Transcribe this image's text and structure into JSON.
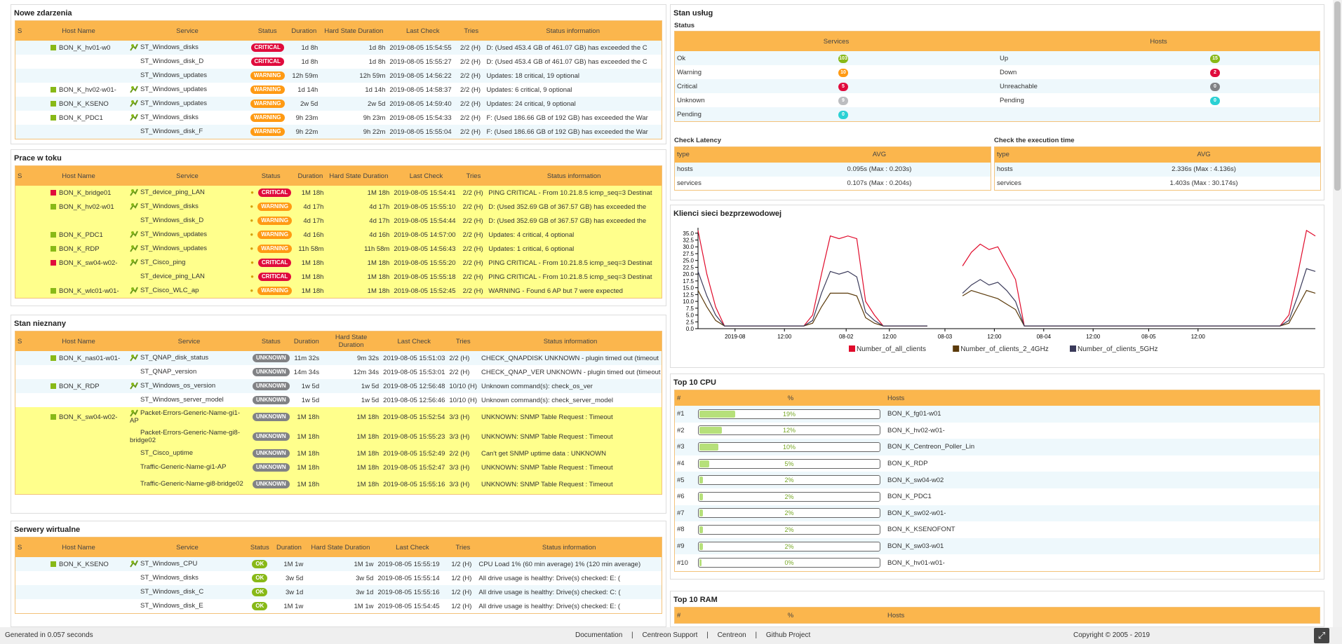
{
  "nowe": {
    "title": "Nowe zdarzenia",
    "headers": [
      "S",
      "Host Name",
      "Service",
      "Status",
      "Duration",
      "Hard State Duration",
      "Last Check",
      "Tries",
      "Status information"
    ],
    "rows": [
      {
        "host": "BON_K_hv01-w0",
        "service": "ST_Windows_disks",
        "status": "CRITICAL",
        "dur": "1d 8h",
        "hard": "1d 8h",
        "last": "2019-08-05 15:54:55",
        "tries": "2/2 (H)",
        "info": "D: (Used 453.4 GB of 461.07 GB) has exceeded the C"
      },
      {
        "host": "",
        "service": "ST_Windows_disk_D",
        "status": "CRITICAL",
        "dur": "1d 8h",
        "hard": "1d 8h",
        "last": "2019-08-05 15:55:27",
        "tries": "2/2 (H)",
        "info": "D: (Used 453.4 GB of 461.07 GB) has exceeded the C"
      },
      {
        "host": "",
        "service": "ST_Windows_updates",
        "status": "WARNING",
        "dur": "12h 59m",
        "hard": "12h 59m",
        "last": "2019-08-05 14:56:22",
        "tries": "2/2 (H)",
        "info": "Updates: 18 critical, 19 optional"
      },
      {
        "host": "BON_K_hv02-w01-",
        "service": "ST_Windows_updates",
        "status": "WARNING",
        "dur": "1d 14h",
        "hard": "1d 14h",
        "last": "2019-08-05 14:58:37",
        "tries": "2/2 (H)",
        "info": "Updates: 6 critical, 9 optional"
      },
      {
        "host": "BON_K_KSENO",
        "service": "ST_Windows_updates",
        "status": "WARNING",
        "dur": "2w 5d",
        "hard": "2w 5d",
        "last": "2019-08-05 14:59:40",
        "tries": "2/2 (H)",
        "info": "Updates: 24 critical, 9 optional"
      },
      {
        "host": "BON_K_PDC1",
        "service": "ST_Windows_disks",
        "status": "WARNING",
        "dur": "9h 23m",
        "hard": "9h 23m",
        "last": "2019-08-05 15:54:33",
        "tries": "2/2 (H)",
        "info": "F: (Used 186.66 GB of 192 GB) has exceeded the War"
      },
      {
        "host": "",
        "service": "ST_Windows_disk_F",
        "status": "WARNING",
        "dur": "9h 22m",
        "hard": "9h 22m",
        "last": "2019-08-05 15:55:04",
        "tries": "2/2 (H)",
        "info": "F: (Used 186.66 GB of 192 GB) has exceeded the War"
      }
    ]
  },
  "prace": {
    "title": "Prace w toku",
    "headers": [
      "S",
      "Host Name",
      "Service",
      "Status",
      "Duration",
      "Hard State Duration",
      "Last Check",
      "Tries",
      "Status information"
    ],
    "rows": [
      {
        "host": "BON_K_bridge01",
        "sq": "r",
        "service": "ST_device_ping_LAN",
        "status": "CRITICAL",
        "dur": "1M 18h",
        "hard": "1M 18h",
        "last": "2019-08-05 15:54:41",
        "tries": "2/2 (H)",
        "info": "PING CRITICAL - From 10.21.8.5 icmp_seq=3 Destinat"
      },
      {
        "host": "BON_K_hv02-w01",
        "sq": "g",
        "service": "ST_Windows_disks",
        "status": "WARNING",
        "dur": "4d 17h",
        "hard": "4d 17h",
        "last": "2019-08-05 15:55:10",
        "tries": "2/2 (H)",
        "info": "D: (Used 352.69 GB of 367.57 GB) has exceeded the"
      },
      {
        "host": "",
        "sq": "",
        "service": "ST_Windows_disk_D",
        "status": "WARNING",
        "dur": "4d 17h",
        "hard": "4d 17h",
        "last": "2019-08-05 15:54:44",
        "tries": "2/2 (H)",
        "info": "D: (Used 352.69 GB of 367.57 GB) has exceeded the"
      },
      {
        "host": "BON_K_PDC1",
        "sq": "g",
        "service": "ST_Windows_updates",
        "status": "WARNING",
        "dur": "4d 16h",
        "hard": "4d 16h",
        "last": "2019-08-05 14:57:00",
        "tries": "2/2 (H)",
        "info": "Updates: 4 critical, 4 optional"
      },
      {
        "host": "BON_K_RDP",
        "sq": "g",
        "service": "ST_Windows_updates",
        "status": "WARNING",
        "dur": "11h 58m",
        "hard": "11h 58m",
        "last": "2019-08-05 14:56:43",
        "tries": "2/2 (H)",
        "info": "Updates: 1 critical, 6 optional"
      },
      {
        "host": "BON_K_sw04-w02-",
        "sq": "r",
        "service": "ST_Cisco_ping",
        "status": "CRITICAL",
        "dur": "1M 18h",
        "hard": "1M 18h",
        "last": "2019-08-05 15:55:20",
        "tries": "2/2 (H)",
        "info": "PING CRITICAL - From 10.21.8.5 icmp_seq=3 Destinat"
      },
      {
        "host": "",
        "sq": "",
        "service": "ST_device_ping_LAN",
        "status": "CRITICAL",
        "dur": "1M 18h",
        "hard": "1M 18h",
        "last": "2019-08-05 15:55:18",
        "tries": "2/2 (H)",
        "info": "PING CRITICAL - From 10.21.8.5 icmp_seq=3 Destinat"
      },
      {
        "host": "BON_K_wlc01-w01-",
        "sq": "g",
        "service": "ST_Cisco_WLC_ap",
        "status": "WARNING",
        "dur": "1M 18h",
        "hard": "1M 18h",
        "last": "2019-08-05 15:52:45",
        "tries": "2/2 (H)",
        "info": "WARNING - Found 6 AP but 7 were expected"
      }
    ]
  },
  "nieznany": {
    "title": "Stan nieznany",
    "headers": [
      "S",
      "Host Name",
      "Service",
      "Status",
      "Duration",
      "Hard State Duration",
      "Last Check",
      "Tries",
      "Status information"
    ],
    "rows": [
      {
        "host": "BON_K_nas01-w01-",
        "service": "ST_QNAP_disk_status",
        "status": "UNKNOWN",
        "dur": "11m 32s",
        "hard": "9m 32s",
        "last": "2019-08-05 15:51:03",
        "tries": "2/2 (H)",
        "info": "CHECK_QNAPDISK UNKNOWN - plugin timed out (timeout"
      },
      {
        "host": "",
        "service": "ST_QNAP_version",
        "status": "UNKNOWN",
        "dur": "14m 34s",
        "hard": "12m 34s",
        "last": "2019-08-05 15:53:01",
        "tries": "2/2 (H)",
        "info": "CHECK_QNAP_VER UNKNOWN - plugin timed out (timeout"
      },
      {
        "host": "BON_K_RDP",
        "service": "ST_Windows_os_version",
        "status": "UNKNOWN",
        "dur": "1w 5d",
        "hard": "1w 5d",
        "last": "2019-08-05 12:56:48",
        "tries": "10/10 (H)",
        "info": "Unknown command(s): check_os_ver"
      },
      {
        "host": "",
        "service": "ST_Windows_server_model",
        "status": "UNKNOWN",
        "dur": "1w 5d",
        "hard": "1w 5d",
        "last": "2019-08-05 12:56:46",
        "tries": "10/10 (H)",
        "info": "Unknown command(s): check_server_model"
      },
      {
        "host": "BON_K_sw04-w02-",
        "service": "Packet-Errors-Generic-Name-gi1-AP",
        "status": "UNKNOWN",
        "dur": "1M 18h",
        "hard": "1M 18h",
        "last": "2019-08-05 15:52:54",
        "tries": "3/3 (H)",
        "info": "UNKNOWN: SNMP Table Request : Timeout"
      },
      {
        "host": "",
        "service": "Packet-Errors-Generic-Name-gi8-bridge02",
        "status": "UNKNOWN",
        "dur": "1M 18h",
        "hard": "1M 18h",
        "last": "2019-08-05 15:55:23",
        "tries": "3/3 (H)",
        "info": "UNKNOWN: SNMP Table Request : Timeout"
      },
      {
        "host": "",
        "service": "ST_Cisco_uptime",
        "status": "UNKNOWN",
        "dur": "1M 18h",
        "hard": "1M 18h",
        "last": "2019-08-05 15:52:49",
        "tries": "2/2 (H)",
        "info": "Can't get SNMP uptime data : UNKNOWN"
      },
      {
        "host": "",
        "service": "Traffic-Generic-Name-gi1-AP",
        "status": "UNKNOWN",
        "dur": "1M 18h",
        "hard": "1M 18h",
        "last": "2019-08-05 15:52:47",
        "tries": "3/3 (H)",
        "info": "UNKNOWN: SNMP Table Request : Timeout"
      },
      {
        "host": "",
        "service": "Traffic-Generic-Name-gi8-bridge02",
        "status": "UNKNOWN",
        "dur": "1M 18h",
        "hard": "1M 18h",
        "last": "2019-08-05 15:55:16",
        "tries": "3/3 (H)",
        "info": "UNKNOWN: SNMP Table Request : Timeout"
      }
    ]
  },
  "serwery": {
    "title": "Serwery wirtualne",
    "headers": [
      "S",
      "Host Name",
      "Service",
      "Status",
      "Duration",
      "Hard State Duration",
      "Last Check",
      "Tries",
      "Status information"
    ],
    "rows": [
      {
        "host": "BON_K_KSENO",
        "service": "ST_Windows_CPU",
        "status": "OK",
        "dur": "1M 1w",
        "hard": "1M 1w",
        "last": "2019-08-05 15:55:19",
        "tries": "1/2 (H)",
        "info": "CPU Load 1% (60 min average) 1% (120 min average)"
      },
      {
        "host": "",
        "service": "ST_Windows_disks",
        "status": "OK",
        "dur": "3w 5d",
        "hard": "3w 5d",
        "last": "2019-08-05 15:55:14",
        "tries": "1/2 (H)",
        "info": "All drive usage is healthy: Drive(s) checked: E: ("
      },
      {
        "host": "",
        "service": "ST_Windows_disk_C",
        "status": "OK",
        "dur": "3w 1d",
        "hard": "3w 1d",
        "last": "2019-08-05 15:55:16",
        "tries": "1/2 (H)",
        "info": "All drive usage is healthy: Drive(s) checked: C: ("
      },
      {
        "host": "",
        "service": "ST_Windows_disk_E",
        "status": "OK",
        "dur": "1M 1w",
        "hard": "1M 1w",
        "last": "2019-08-05 15:54:45",
        "tries": "1/2 (H)",
        "info": "All drive usage is healthy: Drive(s) checked: E: ("
      }
    ]
  },
  "stan": {
    "title": "Stan usług",
    "subtitle": "Status",
    "services_header": "Services",
    "hosts_header": "Hosts",
    "services": [
      {
        "label": "Ok",
        "count": "103",
        "color": "#88b917"
      },
      {
        "label": "Warning",
        "count": "10",
        "color": "#ff9a13"
      },
      {
        "label": "Critical",
        "count": "5",
        "color": "#e00b3d"
      },
      {
        "label": "Unknown",
        "count": "9",
        "color": "#bcbdc0"
      },
      {
        "label": "Pending",
        "count": "0",
        "color": "#2ad1d4"
      }
    ],
    "hosts": [
      {
        "label": "Up",
        "count": "15",
        "color": "#88b917"
      },
      {
        "label": "Down",
        "count": "2",
        "color": "#e00b3d"
      },
      {
        "label": "Unreachable",
        "count": "0",
        "color": "#818285"
      },
      {
        "label": "Pending",
        "count": "0",
        "color": "#2ad1d4"
      }
    ]
  },
  "latency": {
    "title": "Check Latency",
    "col1": "type",
    "col2": "AVG",
    "rows": [
      {
        "type": "hosts",
        "avg": "0.095s (Max : 0.203s)"
      },
      {
        "type": "services",
        "avg": "0.107s (Max : 0.204s)"
      }
    ]
  },
  "exec": {
    "title": "Check the execution time",
    "col1": "type",
    "col2": "AVG",
    "rows": [
      {
        "type": "hosts",
        "avg": "2.336s (Max : 4.136s)"
      },
      {
        "type": "services",
        "avg": "1.403s (Max : 30.174s)"
      }
    ]
  },
  "klienci": {
    "title": "Klienci sieci bezprzewodowej"
  },
  "chart_data": {
    "type": "line",
    "ylim": [
      0,
      37
    ],
    "yticks": [
      "0.0",
      "2.5",
      "5.0",
      "7.5",
      "10.0",
      "12.5",
      "15.0",
      "17.5",
      "20.0",
      "22.5",
      "25.0",
      "27.5",
      "30.0",
      "32.5",
      "35.0"
    ],
    "xticks": [
      "2019-08",
      "12:00",
      "08-02",
      "12:00",
      "08-03",
      "12:00",
      "08-04",
      "12:00",
      "08-05",
      "12:00"
    ],
    "x_index": [
      0,
      4,
      8,
      12,
      16,
      20,
      24,
      28,
      32,
      36,
      40,
      44,
      48,
      52,
      56,
      60,
      64,
      68,
      72,
      76,
      80,
      84,
      88,
      92,
      96,
      100,
      104,
      108,
      112,
      116,
      120,
      124,
      128,
      132,
      136,
      140,
      144,
      148,
      152,
      156,
      160,
      164,
      168,
      172,
      176,
      180,
      184,
      188,
      192,
      196,
      200,
      204,
      208,
      212,
      216,
      220,
      224,
      228,
      232,
      236,
      240,
      244,
      248,
      252,
      256,
      260,
      264,
      268,
      272,
      276,
      280
    ],
    "series": [
      {
        "name": "Number_of_all_clients",
        "color": "#e00b2b",
        "values": [
          36,
          20,
          8,
          1,
          1,
          1,
          1,
          1,
          1,
          1,
          1,
          1,
          1,
          5,
          20,
          34,
          33,
          34,
          33,
          10,
          5,
          1,
          1,
          1,
          1,
          1,
          1,
          null,
          null,
          null,
          23,
          28,
          31,
          29,
          30,
          24,
          18,
          1,
          1,
          1,
          1,
          1,
          1,
          1,
          1,
          1,
          1,
          1,
          1,
          1,
          1,
          1,
          1,
          1,
          1,
          1,
          1,
          1,
          1,
          1,
          1,
          1,
          1,
          1,
          1,
          1,
          1,
          5,
          20,
          36,
          34
        ]
      },
      {
        "name": "Number_of_clients_2_4GHz",
        "color": "#5b3a0a",
        "values": [
          14,
          8,
          3,
          1,
          1,
          1,
          1,
          1,
          1,
          1,
          1,
          1,
          1,
          2,
          8,
          13,
          13,
          13,
          12,
          4,
          2,
          1,
          1,
          1,
          1,
          1,
          1,
          null,
          null,
          null,
          12,
          14,
          13,
          12,
          11,
          9,
          7,
          1,
          1,
          1,
          1,
          1,
          1,
          1,
          1,
          1,
          1,
          1,
          1,
          1,
          1,
          1,
          1,
          1,
          1,
          1,
          1,
          1,
          1,
          1,
          1,
          1,
          1,
          1,
          1,
          1,
          1,
          2,
          8,
          14,
          13
        ]
      },
      {
        "name": "Number_of_clients_5GHz",
        "color": "#3a3a5a",
        "values": [
          21,
          12,
          5,
          1,
          1,
          1,
          1,
          1,
          1,
          1,
          1,
          1,
          1,
          3,
          13,
          21,
          20,
          21,
          19,
          6,
          3,
          1,
          1,
          1,
          1,
          1,
          1,
          null,
          null,
          null,
          13,
          16,
          18,
          16,
          17,
          14,
          10,
          1,
          1,
          1,
          1,
          1,
          1,
          1,
          1,
          1,
          1,
          1,
          1,
          1,
          1,
          1,
          1,
          1,
          1,
          1,
          1,
          1,
          1,
          1,
          1,
          1,
          1,
          1,
          1,
          1,
          1,
          3,
          12,
          22,
          21
        ]
      }
    ]
  },
  "cpu": {
    "title": "Top 10 CPU",
    "headers": [
      "#",
      "%",
      "Hosts"
    ],
    "rows": [
      {
        "n": "#1",
        "pct": "19%",
        "v": 19,
        "host": "BON_K_fg01-w01"
      },
      {
        "n": "#2",
        "pct": "12%",
        "v": 12,
        "host": "BON_K_hv02-w01-"
      },
      {
        "n": "#3",
        "pct": "10%",
        "v": 10,
        "host": "BON_K_Centreon_Poller_Lin"
      },
      {
        "n": "#4",
        "pct": "5%",
        "v": 5,
        "host": "BON_K_RDP"
      },
      {
        "n": "#5",
        "pct": "2%",
        "v": 2,
        "host": "BON_K_sw04-w02"
      },
      {
        "n": "#6",
        "pct": "2%",
        "v": 2,
        "host": "BON_K_PDC1"
      },
      {
        "n": "#7",
        "pct": "2%",
        "v": 2,
        "host": "BON_K_sw02-w01-"
      },
      {
        "n": "#8",
        "pct": "2%",
        "v": 2,
        "host": "BON_K_KSENOFONT"
      },
      {
        "n": "#9",
        "pct": "2%",
        "v": 2,
        "host": "BON_K_sw03-w01"
      },
      {
        "n": "#10",
        "pct": "0%",
        "v": 0,
        "host": "BON_K_hv01-w01-"
      }
    ]
  },
  "ram": {
    "title": "Top 10 RAM",
    "headers": [
      "#",
      "%",
      "Hosts"
    ]
  },
  "footer": {
    "generated": "Generated in 0.057 seconds",
    "links": [
      "Documentation",
      "Centreon Support",
      "Centreon",
      "Github Project"
    ],
    "copyright": "Copyright © 2005 - 2019"
  }
}
